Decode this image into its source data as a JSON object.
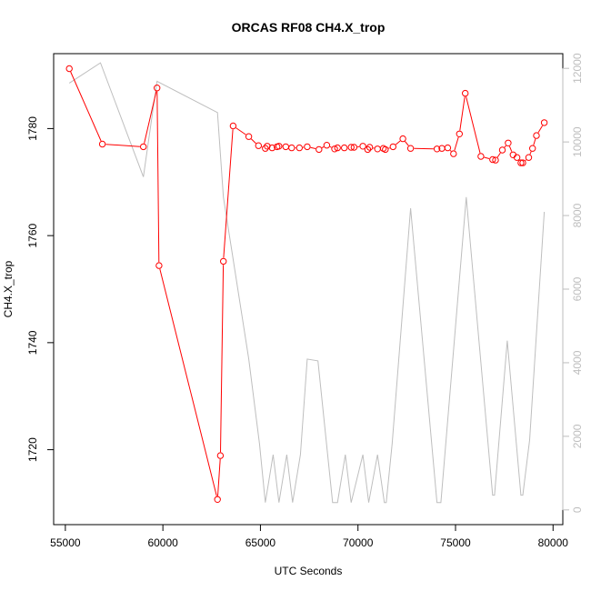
{
  "chart_data": {
    "type": "line",
    "title": "ORCAS RF08 CH4.X_trop",
    "xlabel": "UTC Seconds",
    "ylabel": "CH4.X_trop",
    "xlim": [
      54400,
      80500
    ],
    "ylim": [
      1706,
      1794
    ],
    "y2lim": [
      -400,
      12400
    ],
    "x_ticks": [
      55000,
      60000,
      65000,
      70000,
      75000,
      80000
    ],
    "y_ticks": [
      1720,
      1740,
      1760,
      1780
    ],
    "y2_ticks": [
      0,
      2000,
      4000,
      6000,
      8000,
      10000,
      12000
    ],
    "grid": false,
    "colors": {
      "primary": "#ff0000",
      "secondary": "#bebebe"
    },
    "series": [
      {
        "axis": "left",
        "style": "line-with-circle-markers",
        "color": "#ff0000",
        "points": [
          [
            55200,
            1791.2
          ],
          [
            56900,
            1777.1
          ],
          [
            59000,
            1776.6
          ],
          [
            59700,
            1787.6
          ],
          [
            59800,
            1754.4
          ],
          [
            62800,
            1710.7
          ],
          [
            62950,
            1718.9
          ],
          [
            63100,
            1755.2
          ],
          [
            63600,
            1780.5
          ],
          [
            64400,
            1778.5
          ],
          [
            64900,
            1776.8
          ],
          [
            65250,
            1776.3
          ],
          [
            65350,
            1776.7
          ],
          [
            65600,
            1776.4
          ],
          [
            65850,
            1776.6
          ],
          [
            65950,
            1776.7
          ],
          [
            66300,
            1776.6
          ],
          [
            66600,
            1776.4
          ],
          [
            67000,
            1776.4
          ],
          [
            67400,
            1776.6
          ],
          [
            68000,
            1776.1
          ],
          [
            68400,
            1776.9
          ],
          [
            68800,
            1776.2
          ],
          [
            68950,
            1776.4
          ],
          [
            69300,
            1776.4
          ],
          [
            69650,
            1776.5
          ],
          [
            69800,
            1776.5
          ],
          [
            70250,
            1776.7
          ],
          [
            70500,
            1776.1
          ],
          [
            70600,
            1776.5
          ],
          [
            71000,
            1776.2
          ],
          [
            71300,
            1776.3
          ],
          [
            71400,
            1776.1
          ],
          [
            71800,
            1776.6
          ],
          [
            72300,
            1778.1
          ],
          [
            72700,
            1776.3
          ],
          [
            74050,
            1776.2
          ],
          [
            74300,
            1776.3
          ],
          [
            74600,
            1776.4
          ],
          [
            74900,
            1775.3
          ],
          [
            75200,
            1779.0
          ],
          [
            75500,
            1786.6
          ],
          [
            76300,
            1774.8
          ],
          [
            76900,
            1774.2
          ],
          [
            77050,
            1774.1
          ],
          [
            77400,
            1776.0
          ],
          [
            77700,
            1777.3
          ],
          [
            77950,
            1775.1
          ],
          [
            78150,
            1774.6
          ],
          [
            78350,
            1773.6
          ],
          [
            78450,
            1773.6
          ],
          [
            78750,
            1774.6
          ],
          [
            78950,
            1776.3
          ],
          [
            79150,
            1778.7
          ],
          [
            79550,
            1781.1
          ]
        ]
      },
      {
        "axis": "right",
        "style": "line",
        "color": "#bebebe",
        "points": [
          [
            55200,
            11600
          ],
          [
            56800,
            12150
          ],
          [
            59000,
            9050
          ],
          [
            59700,
            11650
          ],
          [
            62800,
            10800
          ],
          [
            63100,
            8500
          ],
          [
            64400,
            4100
          ],
          [
            64950,
            1800
          ],
          [
            65250,
            200
          ],
          [
            65650,
            1500
          ],
          [
            65950,
            200
          ],
          [
            66350,
            1500
          ],
          [
            66650,
            200
          ],
          [
            67050,
            1500
          ],
          [
            67400,
            4100
          ],
          [
            67950,
            4050
          ],
          [
            68700,
            200
          ],
          [
            68950,
            200
          ],
          [
            69350,
            1500
          ],
          [
            69650,
            200
          ],
          [
            70250,
            1500
          ],
          [
            70550,
            200
          ],
          [
            71000,
            1500
          ],
          [
            71350,
            200
          ],
          [
            71450,
            200
          ],
          [
            71750,
            1800
          ],
          [
            72700,
            8200
          ],
          [
            74050,
            200
          ],
          [
            74250,
            200
          ],
          [
            75550,
            8500
          ],
          [
            76900,
            400
          ],
          [
            77000,
            400
          ],
          [
            77650,
            4600
          ],
          [
            78350,
            400
          ],
          [
            78450,
            400
          ],
          [
            78800,
            1900
          ],
          [
            79550,
            8100
          ]
        ]
      }
    ]
  }
}
